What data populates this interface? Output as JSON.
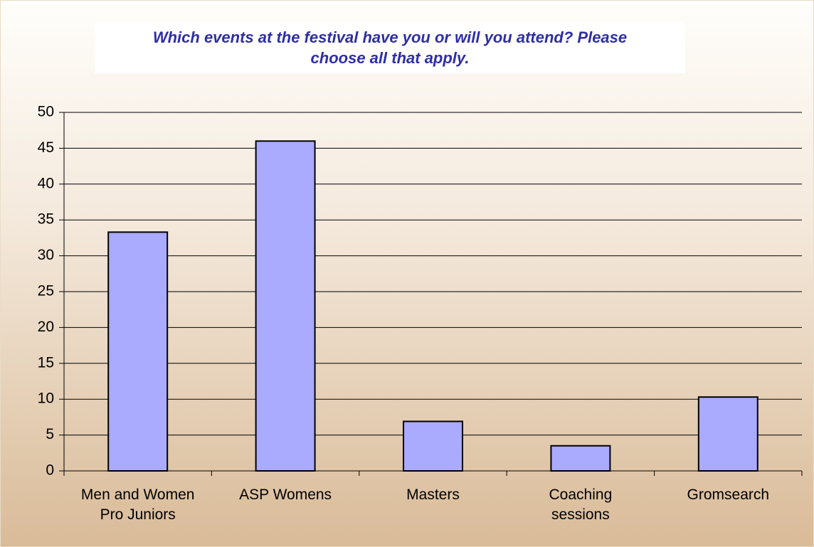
{
  "chart_data": {
    "type": "bar",
    "title": "Which events at the festival have you or will you attend? Please choose all that apply.",
    "categories": [
      "Men and Women\nPro Juniors",
      "ASP Womens",
      "Masters",
      "Coaching\nsessions",
      "Gromsearch"
    ],
    "values": [
      33.3,
      46,
      6.9,
      3.5,
      10.3
    ],
    "color": "#aaaaff",
    "ylim": [
      0,
      50
    ],
    "yticks": [
      0,
      5,
      10,
      15,
      20,
      25,
      30,
      35,
      40,
      45,
      50
    ],
    "grid": true
  }
}
